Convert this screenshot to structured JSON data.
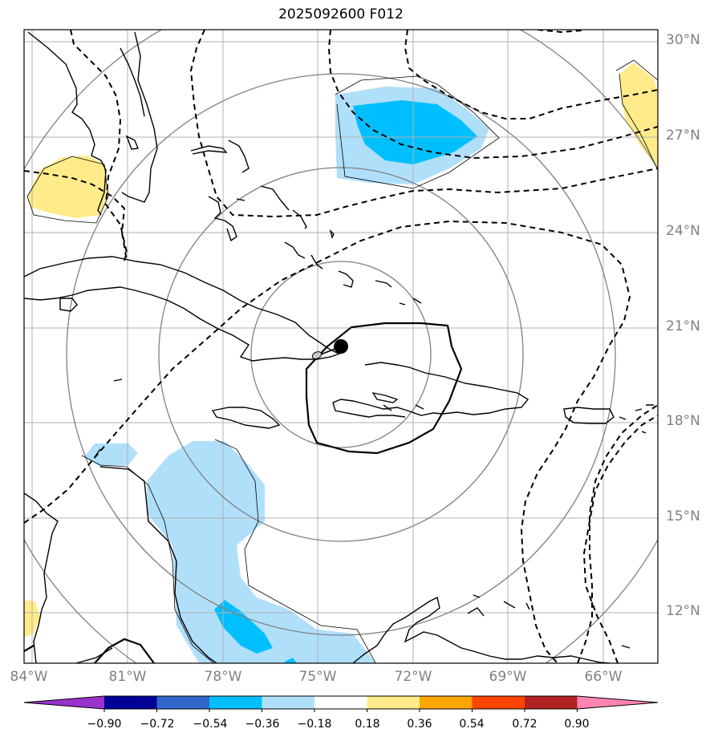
{
  "title": "2025092600 F012",
  "lat_labels": [
    "30°N",
    "27°N",
    "24°N",
    "21°N",
    "18°N",
    "15°N",
    "12°N"
  ],
  "lon_labels": [
    "84°W",
    "81°W",
    "78°W",
    "75°W",
    "72°W",
    "69°W",
    "66°W"
  ],
  "colorbar": {
    "ticks": [
      "−0.90",
      "−0.72",
      "−0.54",
      "−0.36",
      "−0.18",
      "0.18",
      "0.36",
      "0.54",
      "0.72",
      "0.90"
    ],
    "colors": [
      "#9933cc",
      "#000099",
      "#3366cc",
      "#00bfff",
      "#b0dffa",
      "#ffffff",
      "#ffeb8a",
      "#ffa500",
      "#ff4500",
      "#b22222",
      "#ff85b0"
    ]
  },
  "colors": {
    "light_blue": "#b0dffa",
    "blue": "#00bfff",
    "yellow": "#ffeb8a",
    "gridline": "#b0b0b0",
    "range_ring": "#808080"
  },
  "map_extent": {
    "lon_min": -84,
    "lon_max": -64.2,
    "lat_min": 10.4,
    "lat_max": 30.3
  }
}
